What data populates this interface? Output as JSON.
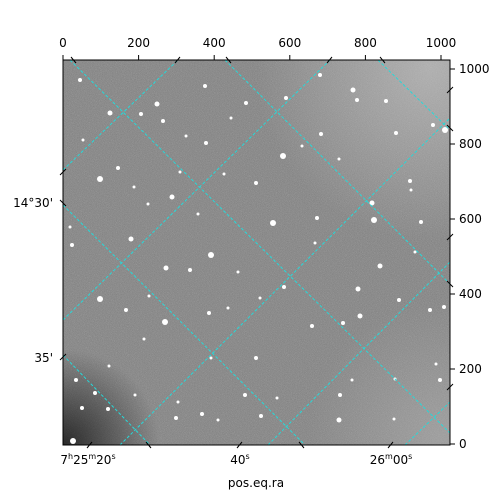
{
  "figure": {
    "image": {
      "kind": "astronomical-star-field",
      "colormap": "grayscale",
      "pixel_range": [
        0,
        1024
      ]
    },
    "grid_color": "#26d9d9",
    "axes": {
      "top_ticks": [
        "0",
        "200",
        "400",
        "600",
        "800",
        "1000"
      ],
      "right_ticks": [
        "0",
        "200",
        "400",
        "600",
        "800",
        "1000"
      ],
      "left_ticks": [
        "14°30'",
        "35'"
      ],
      "bottom_ticks": [
        {
          "main": "7",
          "sup1": "h",
          "mid": "25",
          "sup2": "m",
          "tail": "20",
          "sup3": "s"
        },
        {
          "main": "40",
          "sup3": "s"
        },
        {
          "main": "26",
          "sup2": "m",
          "tail": "00",
          "sup3": "s"
        }
      ],
      "xlabel": "pos.eq.ra"
    }
  }
}
